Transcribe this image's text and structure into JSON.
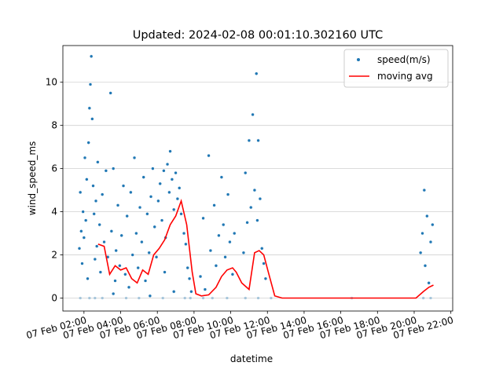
{
  "chart_data": {
    "type": "scatter",
    "title": "Updated: 2024-02-08 00:01:10.302160 UTC",
    "xlabel": "datetime",
    "ylabel": "wind_speed_ms",
    "xlim": [
      0.85,
      22.1
    ],
    "ylim": [
      -0.6,
      11.7
    ],
    "xticks": [
      {
        "value": 2,
        "label": "07 Feb 02:00"
      },
      {
        "value": 4,
        "label": "07 Feb 04:00"
      },
      {
        "value": 6,
        "label": "07 Feb 06:00"
      },
      {
        "value": 8,
        "label": "07 Feb 08:00"
      },
      {
        "value": 10,
        "label": "07 Feb 10:00"
      },
      {
        "value": 12,
        "label": "07 Feb 12:00"
      },
      {
        "value": 14,
        "label": "07 Feb 14:00"
      },
      {
        "value": 16,
        "label": "07 Feb 16:00"
      },
      {
        "value": 18,
        "label": "07 Feb 18:00"
      },
      {
        "value": 20,
        "label": "07 Feb 20:00"
      },
      {
        "value": 22,
        "label": "07 Feb 22:00"
      }
    ],
    "yticks": [
      0,
      2,
      4,
      6,
      8,
      10
    ],
    "grid": "y",
    "legend": "upper right",
    "series": [
      {
        "name": "speed(m/s)",
        "type": "scatter",
        "color": "#1f77b4",
        "x": [
          1.75,
          1.8,
          1.85,
          1.9,
          1.95,
          2.0,
          2.05,
          2.1,
          2.15,
          2.2,
          2.25,
          2.3,
          2.35,
          2.4,
          2.45,
          2.5,
          2.55,
          2.6,
          2.65,
          2.7,
          2.75,
          1.8,
          2.3,
          2.6,
          2.85,
          2.9,
          3.0,
          3.1,
          3.2,
          3.3,
          3.45,
          3.5,
          3.6,
          3.7,
          3.75,
          3.85,
          3.95,
          3.0,
          3.6,
          4.05,
          4.15,
          4.25,
          4.35,
          4.45,
          4.55,
          4.65,
          4.75,
          4.85,
          4.95,
          5.05,
          5.15,
          5.25,
          5.35,
          5.45,
          5.55,
          5.65,
          5.75,
          5.85,
          5.95,
          4.3,
          5.0,
          5.6,
          6.05,
          6.15,
          6.25,
          6.35,
          6.45,
          6.55,
          6.65,
          6.7,
          6.8,
          6.9,
          7.0,
          7.1,
          7.2,
          7.3,
          6.4,
          6.9,
          6.3,
          7.45,
          7.55,
          7.65,
          7.75,
          7.85,
          7.5,
          7.8,
          8.35,
          8.5,
          8.6,
          8.8,
          8.9,
          9.1,
          9.2,
          9.35,
          9.5,
          9.6,
          9.7,
          9.85,
          9.95,
          10.1,
          10.2,
          8.5,
          9.0,
          9.8,
          10.7,
          10.8,
          10.9,
          11.0,
          11.1,
          11.2,
          11.3,
          11.4,
          11.45,
          11.5,
          11.6,
          11.7,
          11.8,
          11.9,
          10.8,
          11.5,
          12.2,
          16.6,
          20.35,
          20.45,
          20.55,
          20.6,
          20.7,
          20.8,
          20.9,
          21.0,
          20.5,
          20.9
        ],
        "values": [
          2.3,
          4.9,
          3.1,
          1.6,
          4.0,
          2.8,
          6.5,
          3.6,
          5.5,
          0.9,
          7.2,
          8.8,
          9.9,
          11.2,
          8.3,
          5.2,
          3.9,
          1.8,
          4.5,
          2.4,
          6.3,
          0,
          0,
          0,
          3.4,
          1.2,
          4.8,
          2.6,
          5.9,
          1.9,
          9.5,
          3.1,
          6.0,
          0.8,
          2.2,
          4.3,
          1.5,
          0,
          0.2,
          2.9,
          5.2,
          1.1,
          3.8,
          0.5,
          4.9,
          2.0,
          6.5,
          3.0,
          1.4,
          4.2,
          2.6,
          5.6,
          0.8,
          3.9,
          2.1,
          4.7,
          6.0,
          3.3,
          1.9,
          0,
          0,
          0.1,
          4.5,
          5.3,
          3.6,
          5.9,
          2.8,
          6.2,
          4.9,
          6.8,
          5.5,
          4.1,
          5.8,
          4.6,
          5.1,
          3.9,
          1.2,
          0.3,
          0,
          3.0,
          2.5,
          1.4,
          0.9,
          0.3,
          0,
          0,
          1.0,
          3.7,
          0.4,
          6.6,
          2.2,
          4.3,
          1.5,
          2.9,
          5.6,
          3.4,
          1.9,
          4.8,
          2.6,
          1.1,
          3.0,
          0,
          0,
          0,
          2.1,
          5.8,
          3.5,
          7.3,
          4.2,
          8.5,
          5.0,
          10.4,
          3.6,
          7.3,
          4.6,
          2.3,
          1.6,
          0.9,
          0,
          0,
          0,
          0,
          2.1,
          3.0,
          5.0,
          1.5,
          3.8,
          0.7,
          2.6,
          3.4,
          0,
          0
        ]
      },
      {
        "name": "moving avg",
        "type": "line",
        "color": "#ff0000",
        "x": [
          2.77,
          3.1,
          3.4,
          3.7,
          4.0,
          4.3,
          4.6,
          4.9,
          5.2,
          5.5,
          5.8,
          6.1,
          6.4,
          6.7,
          7.0,
          7.3,
          7.6,
          7.9,
          8.1,
          8.4,
          8.8,
          9.2,
          9.5,
          9.8,
          10.1,
          10.3,
          10.6,
          11.0,
          11.3,
          11.55,
          11.8,
          12.05,
          12.4,
          12.8,
          16.0,
          20.1,
          20.5,
          20.8,
          21.05
        ],
        "values": [
          2.5,
          2.4,
          1.1,
          1.5,
          1.3,
          1.4,
          0.9,
          0.7,
          1.3,
          1.1,
          2.0,
          2.3,
          2.7,
          3.4,
          3.8,
          4.5,
          3.4,
          1.2,
          0.2,
          0.1,
          0.15,
          0.5,
          1.0,
          1.3,
          1.4,
          1.2,
          0.7,
          0.4,
          2.1,
          2.2,
          2.0,
          1.2,
          0.1,
          0,
          0,
          0,
          0.3,
          0.5,
          0.6
        ]
      }
    ]
  }
}
